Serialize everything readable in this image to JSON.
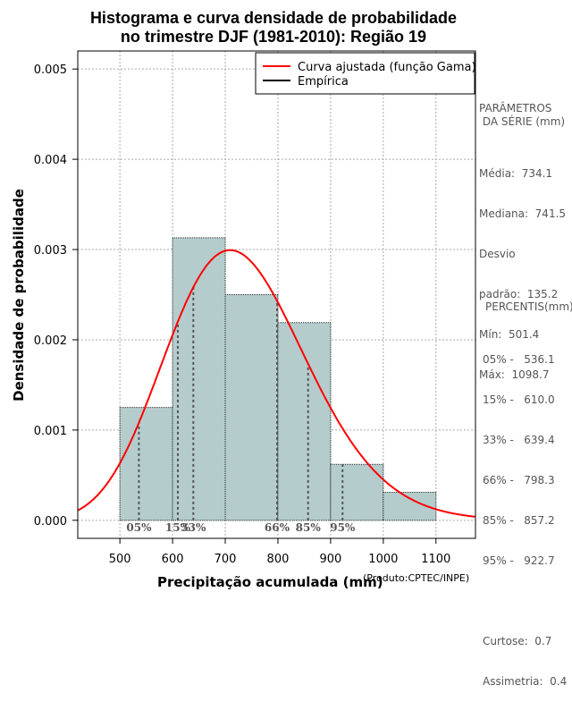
{
  "chart_data": {
    "type": "histogram",
    "title_line1": "Histograma e curva densidade de probabilidade",
    "title_line2": "no trimestre DJF (1981-2010): Região 19",
    "xlabel": "Precipitação acumulada (mm)",
    "ylabel": "Densidade de probabilidade",
    "credit": "(Produto:CPTEC/INPE)",
    "xlim": [
      420,
      1175
    ],
    "ylim": [
      -0.0002,
      0.0052
    ],
    "x_ticks": [
      500,
      600,
      700,
      800,
      900,
      1000,
      1100
    ],
    "y_ticks": [
      "0.000",
      "0.001",
      "0.002",
      "0.003",
      "0.004",
      "0.005"
    ],
    "bins": [
      {
        "from": 500,
        "to": 600,
        "density": 0.00125
      },
      {
        "from": 600,
        "to": 700,
        "density": 0.00313
      },
      {
        "from": 700,
        "to": 800,
        "density": 0.0025
      },
      {
        "from": 800,
        "to": 900,
        "density": 0.00219
      },
      {
        "from": 900,
        "to": 1000,
        "density": 0.00062
      },
      {
        "from": 1000,
        "to": 1100,
        "density": 0.00031
      }
    ],
    "gamma_fit": {
      "mean": 734.1,
      "sd": 135.2
    },
    "percentile_lines": [
      {
        "label": "05%",
        "value": 536.1
      },
      {
        "label": "15%",
        "value": 610.0
      },
      {
        "label": "33%",
        "value": 639.4
      },
      {
        "label": "66%",
        "value": 798.3
      },
      {
        "label": "85%",
        "value": 857.2
      },
      {
        "label": "95%",
        "value": 922.7
      }
    ],
    "legend": [
      {
        "label": "Curva ajustada (função Gama)",
        "color": "#ff0000"
      },
      {
        "label": "Empírica",
        "color": "#000000"
      }
    ],
    "colors": {
      "bar_fill": "#b5cccc",
      "curve": "#ff0000",
      "grid": "#aaaaaa",
      "percentile": "#555555"
    }
  },
  "stats": {
    "header_line1": "PARÂMETROS",
    "header_line2": " DA SÉRIE (mm)",
    "lines": [
      "Média:  734.1",
      "Mediana:  741.5",
      "Desvio",
      "padrão:  135.2",
      "Mín:  501.4",
      "Máx:  1098.7"
    ]
  },
  "percentis": {
    "header": "PERCENTIS(mm)",
    "lines": [
      "05% -   536.1",
      "15% -   610.0",
      "33% -   639.4",
      "66% -   798.3",
      "85% -   857.2",
      "95% -   922.7"
    ],
    "extra": [
      "Curtose:  0.7",
      "Assimetria:  0.4"
    ]
  }
}
